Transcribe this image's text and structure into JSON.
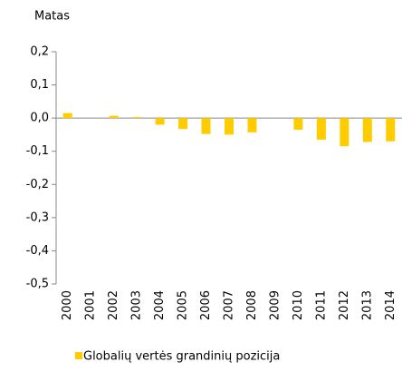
{
  "chart_data": {
    "type": "bar",
    "y_label": "Matas",
    "categories": [
      "2000",
      "2001",
      "2002",
      "2003",
      "2004",
      "2005",
      "2006",
      "2007",
      "2008",
      "2009",
      "2010",
      "2011",
      "2012",
      "2013",
      "2014"
    ],
    "series": [
      {
        "name": "Globalių vertės grandinių pozicija",
        "color": "#ffcc00",
        "values": [
          0.015,
          null,
          0.007,
          0.003,
          -0.02,
          -0.033,
          -0.048,
          -0.05,
          -0.043,
          null,
          -0.035,
          -0.065,
          -0.085,
          -0.072,
          -0.07
        ]
      }
    ],
    "ylim": [
      -0.5,
      0.2
    ],
    "yticks": [
      {
        "value": -0.5,
        "label": "-0,5"
      },
      {
        "value": -0.4,
        "label": "-0,4"
      },
      {
        "value": -0.3,
        "label": "-0,3"
      },
      {
        "value": -0.2,
        "label": "-0,2"
      },
      {
        "value": -0.1,
        "label": "-0,1"
      },
      {
        "value": 0,
        "label": "0,0"
      },
      {
        "value": 0.1,
        "label": "0,1"
      },
      {
        "value": 0.2,
        "label": "0,2"
      }
    ],
    "legend": "bottom"
  }
}
